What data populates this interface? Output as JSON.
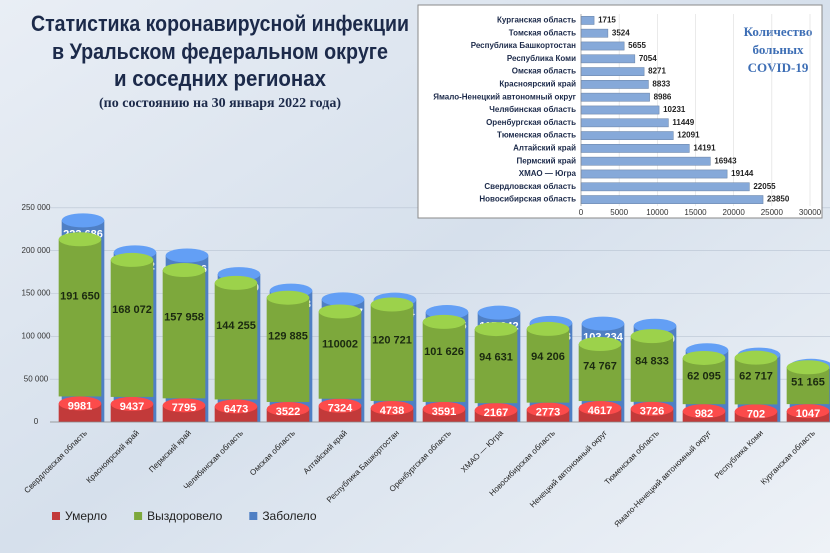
{
  "chart_data": [
    {
      "type": "bar",
      "title": [
        "Статистика коронавирусной инфекции",
        "в Уральском федеральном округе",
        "и соседних регионах"
      ],
      "subtitle": "(по состоянию на 30 января 2022 года)",
      "categories": [
        "Свердловская область",
        "Красноярский край",
        "Пермский край",
        "Челябинская область",
        "Омская область",
        "Алтайский край",
        "Республика Башкортостан",
        "Оренбургская область",
        "ХМАО — Югра",
        "Новосибирская область",
        "Ненецкий автономный округ",
        "Тюменская область",
        "Ямало-Ненецкий автономный округ",
        "Республика Коми",
        "Курганская область"
      ],
      "series": [
        {
          "name": "Умерло",
          "color": "#c23a3a",
          "values": [
            9981,
            9437,
            7795,
            6473,
            3522,
            7324,
            4738,
            3591,
            2167,
            2773,
            4617,
            3726,
            982,
            702,
            1047
          ]
        },
        {
          "name": "Выздоровело",
          "color": "#7da83c",
          "values": [
            191650,
            168072,
            157958,
            144255,
            129885,
            110002,
            120721,
            101626,
            94631,
            94206,
            74767,
            84833,
            62095,
            62717,
            51165
          ],
          "value_labels": [
            "191 650",
            "168 072",
            "157 958",
            "144 255",
            "129 885",
            "110002",
            "120 721",
            "101 626",
            "94 631",
            "94 206",
            "74 767",
            "84 833",
            "62 095",
            "62 717",
            "51 165"
          ]
        },
        {
          "name": "Заболело",
          "color": "#4f7fc4",
          "values": [
            223686,
            186342,
            182696,
            160959,
            141678,
            131517,
            131114,
            116666,
            115942,
            104033,
            103234,
            100650,
            72063,
            66943,
            53927
          ],
          "value_labels": [
            "223 686",
            "186 342",
            "182 696",
            "160 959",
            "141 678",
            "131 517",
            "131 114",
            "116 666",
            "115 942",
            "104 033",
            "103 234",
            "100 650",
            "72 063",
            "66 943",
            "53 927"
          ]
        }
      ],
      "ylim": [
        0,
        300000
      ],
      "yticks": [
        0,
        {
          "value": 50000,
          "label": "50 000"
        },
        {
          "value": 100000,
          "label": "100 000"
        },
        {
          "value": 150000,
          "label": "150 000"
        },
        {
          "value": 200000,
          "label": "200 000"
        },
        {
          "value": 250000,
          "label": "250 000"
        }
      ],
      "grid": true,
      "legend": "bottom-left"
    },
    {
      "type": "barh",
      "title": [
        "Количество",
        "больных",
        "COVID-19"
      ],
      "categories": [
        "Курганская область",
        "Томская область",
        "Республика Башкортостан",
        "Республика Коми",
        "Омская область",
        "Красноярский край",
        "Ямало-Ненецкий автономный округ",
        "Челябинская область",
        "Оренбургская область",
        "Тюменская область",
        "Алтайский край",
        "Пермский край",
        "ХМАО — Югра",
        "Свердловская область",
        "Новосибирская область"
      ],
      "values": [
        1715,
        3524,
        5655,
        7054,
        8271,
        8833,
        8986,
        10231,
        11449,
        12091,
        14191,
        16943,
        19144,
        22055,
        23850
      ],
      "color": "#86a9d9",
      "xlim": [
        0,
        30000
      ],
      "xticks": [
        0,
        5000,
        10000,
        15000,
        20000,
        25000,
        30000
      ],
      "grid": true
    }
  ]
}
